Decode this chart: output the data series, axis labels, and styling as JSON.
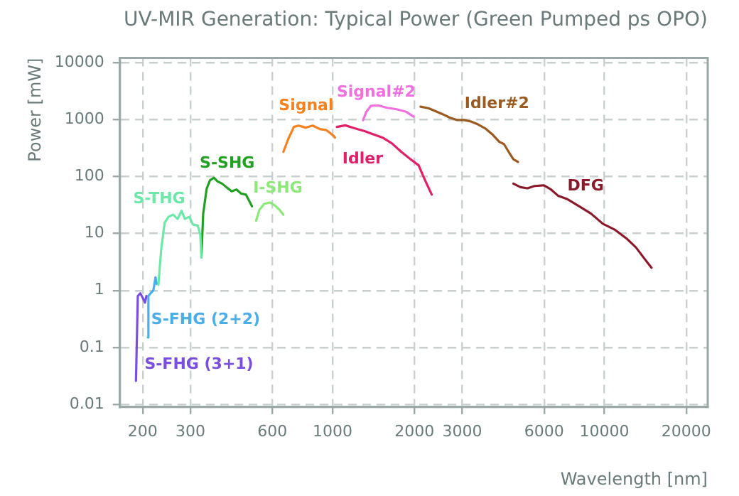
{
  "chart_data": {
    "type": "line",
    "title": "UV-MIR Generation: Typical Power (Green Pumped ps OPO)",
    "xlabel": "Wavelength [nm]",
    "ylabel": "Power [mW]",
    "log": "xy",
    "grid": true,
    "legend": false,
    "marker": "none",
    "line_style": "solid",
    "xlim": [
      165,
      24000
    ],
    "ylim": [
      0.009,
      12000
    ],
    "xticks": [
      200,
      300,
      600,
      1000,
      2000,
      3000,
      6000,
      10000,
      20000
    ],
    "yticks": [
      0.01,
      0.1,
      1,
      10,
      100,
      1000,
      10000
    ],
    "series": [
      {
        "name": "S-FHG (3+1)",
        "color": "#7a4fe0",
        "x": [
          189,
          192,
          196,
          200,
          204,
          206.5
        ],
        "values": [
          0.026,
          0.8,
          0.89,
          0.75,
          0.61,
          0.8
        ]
      },
      {
        "name": "S-FHG (2+2)",
        "color": "#4aaee8",
        "x": [
          209,
          210,
          215,
          219,
          223,
          225
        ],
        "values": [
          0.15,
          0.8,
          0.92,
          1.0,
          1.7,
          1.3
        ]
      },
      {
        "name": "S-THG",
        "color": "#6ee8a8",
        "x": [
          228.6,
          234,
          241,
          249,
          259,
          269,
          278,
          286,
          297,
          306,
          319,
          326,
          329
        ],
        "values": [
          1.25,
          5.2,
          15.5,
          19.6,
          21.4,
          18,
          25,
          18,
          19.6,
          14.4,
          13.8,
          9.5,
          3.8
        ]
      },
      {
        "name": "S-SHG",
        "color": "#22a022",
        "x": [
          329,
          334,
          344,
          354,
          366,
          377,
          392,
          408,
          425,
          443,
          461,
          480,
          505
        ],
        "values": [
          3.8,
          22,
          61,
          86,
          95,
          82,
          75,
          64,
          55,
          59,
          50,
          48,
          30
        ]
      },
      {
        "name": "I-SHG",
        "color": "#8de87a",
        "x": [
          523,
          538,
          560,
          589,
          613,
          638,
          659
        ],
        "values": [
          16.8,
          26,
          33,
          35,
          31,
          26,
          21.3
        ]
      },
      {
        "name": "Signal",
        "color": "#f58220",
        "x": [
          659,
          686,
          720,
          750,
          796,
          845,
          897,
          950,
          1008,
          1020
        ],
        "values": [
          270,
          450,
          740,
          780,
          720,
          780,
          680,
          650,
          520,
          480
        ]
      },
      {
        "name": "Signal#2",
        "color": "#f070e0",
        "x": [
          1294,
          1331,
          1385,
          1469,
          1589,
          1720,
          1862,
          1984
        ],
        "values": [
          970,
          1370,
          1740,
          1770,
          1600,
          1510,
          1370,
          1120
        ]
      },
      {
        "name": "Idler",
        "color": "#e0206a",
        "x": [
          1037,
          1113,
          1205,
          1305,
          1411,
          1528,
          1654,
          1790,
          1938,
          2072,
          2181,
          2316
        ],
        "values": [
          740,
          790,
          700,
          630,
          550,
          480,
          380,
          270,
          200,
          157,
          89,
          48
        ]
      },
      {
        "name": "Idler#2",
        "color": "#9a5a20",
        "x": [
          2106,
          2251,
          2392,
          2540,
          2697,
          2862,
          3040,
          3228,
          3428,
          3640,
          3866,
          4106,
          4271,
          4444,
          4624,
          4811
        ],
        "values": [
          1680,
          1580,
          1400,
          1240,
          1080,
          980,
          980,
          920,
          820,
          700,
          550,
          405,
          370,
          270,
          200,
          180
        ]
      },
      {
        "name": "DFG",
        "color": "#8a1a2a",
        "x": [
          4624,
          4910,
          5213,
          5535,
          5995,
          6362,
          6753,
          7314,
          8082,
          8930,
          9868,
          10903,
          12048,
          13058,
          14147,
          14900
        ],
        "values": [
          75,
          65,
          62,
          68,
          70,
          59,
          46,
          40,
          30,
          22.3,
          14.8,
          11.7,
          8.2,
          5.7,
          3.45,
          2.5
        ]
      }
    ]
  }
}
